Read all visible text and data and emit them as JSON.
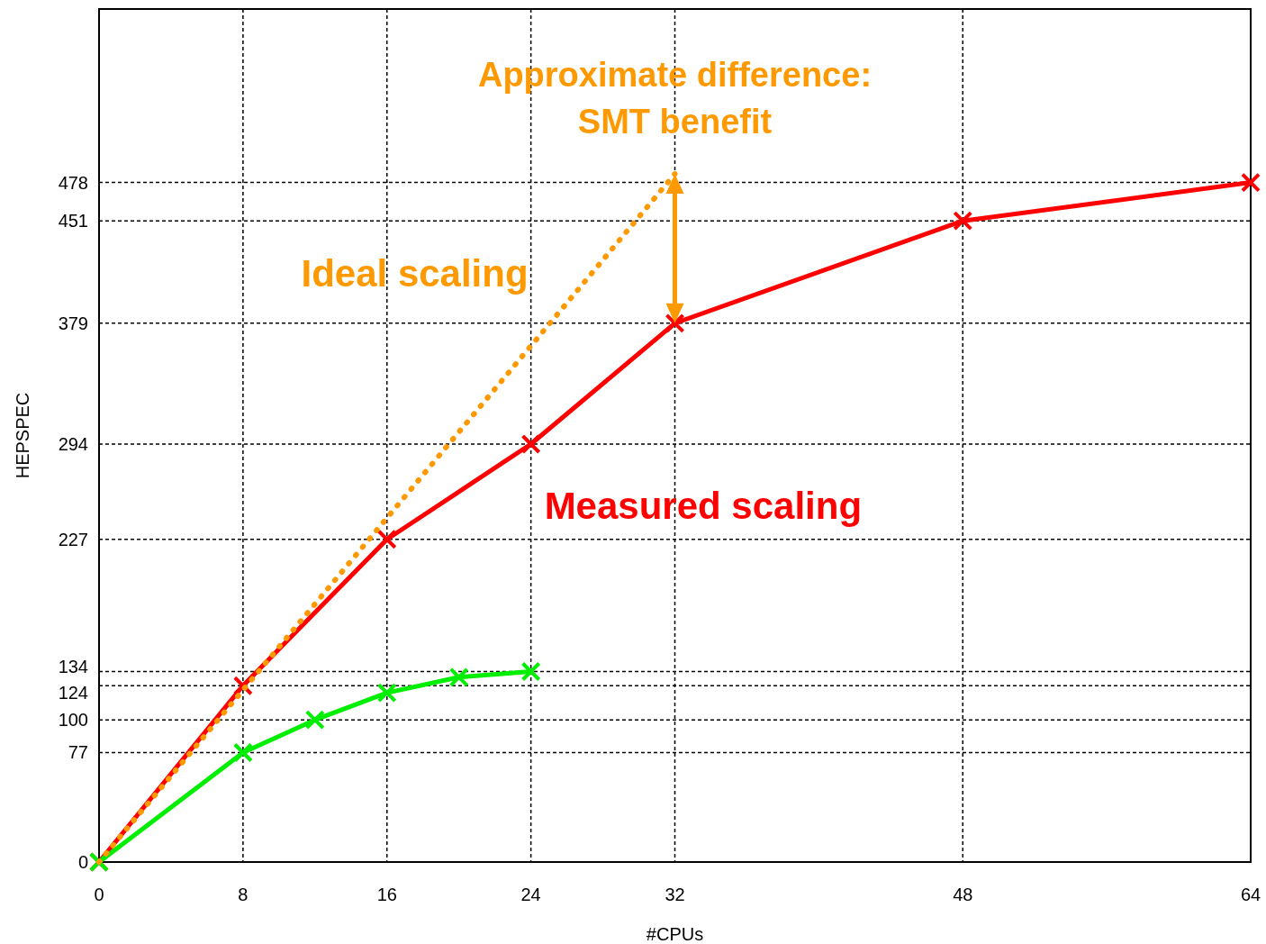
{
  "chart_data": {
    "type": "line",
    "xlabel": "#CPUs",
    "ylabel": "HEPSPEC",
    "xlim": [
      0,
      64
    ],
    "ylim": [
      0,
      600
    ],
    "xticks": [
      0,
      8,
      16,
      24,
      32,
      48,
      64
    ],
    "yticks": [
      0,
      77,
      100,
      124,
      134,
      227,
      294,
      379,
      451,
      478
    ],
    "grid": true,
    "series": [
      {
        "name": "Measured scaling",
        "color": "#ff0000",
        "x": [
          0,
          8,
          16,
          24,
          32,
          48,
          64
        ],
        "values": [
          0,
          124,
          227,
          294,
          379,
          451,
          478
        ],
        "marker": "cross",
        "line_style": "solid"
      },
      {
        "color": "#00ee00",
        "x": [
          0,
          8,
          12,
          16,
          20,
          24
        ],
        "values": [
          0,
          77,
          100,
          119,
          130,
          134
        ],
        "marker": "cross",
        "line_style": "solid"
      },
      {
        "name": "Ideal scaling",
        "color": "#ff9900",
        "x": [
          0,
          32
        ],
        "values": [
          0,
          484
        ],
        "marker": "none",
        "line_style": "dotted"
      }
    ],
    "annotations": [
      "Approximate difference:",
      "SMT benefit"
    ]
  }
}
